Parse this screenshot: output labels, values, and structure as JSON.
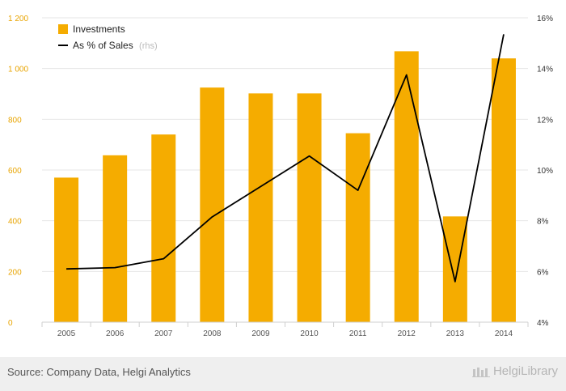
{
  "chart_data": {
    "type": "bar",
    "categories": [
      "2005",
      "2006",
      "2007",
      "2008",
      "2009",
      "2010",
      "2011",
      "2012",
      "2013",
      "2014"
    ],
    "series": [
      {
        "name": "Investments",
        "type": "bar",
        "axis": "left",
        "values": [
          570,
          658,
          740,
          925,
          902,
          902,
          745,
          1068,
          417,
          1040
        ]
      },
      {
        "name": "As % of Sales",
        "type": "line",
        "axis": "right",
        "values": [
          6.1,
          6.15,
          6.5,
          8.15,
          9.35,
          10.55,
          9.2,
          13.75,
          5.6,
          15.35
        ]
      }
    ],
    "legend": {
      "series_note": "(rhs)",
      "placement": "top-left"
    },
    "ylim_left": [
      0,
      1200
    ],
    "ylim_right": [
      4,
      16
    ],
    "yticks_left": [
      "0",
      "200",
      "400",
      "600",
      "800",
      "1 000",
      "1 200"
    ],
    "yticks_right": [
      "4%",
      "6%",
      "8%",
      "10%",
      "12%",
      "14%",
      "16%"
    ],
    "grid": true,
    "colors": {
      "bar": "#f5ac00",
      "line": "#000000",
      "left_axis_text": "#e8a400"
    }
  },
  "footer": {
    "source": "Source: Company Data, Helgi Analytics",
    "brand": "HelgiLibrary"
  }
}
